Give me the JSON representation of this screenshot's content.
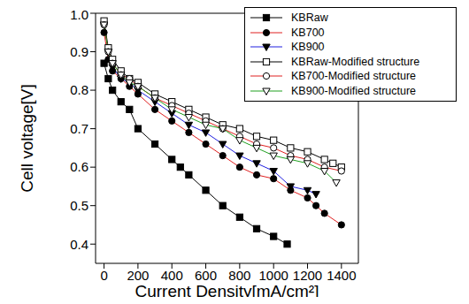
{
  "chart_data": {
    "type": "line",
    "x_label": "Current Density[mA/cm²]",
    "y_label": "Cell voltage[V]",
    "xlim": [
      -50,
      1500
    ],
    "xticks": [
      0,
      200,
      400,
      600,
      800,
      1000,
      1200,
      1400
    ],
    "ylim": [
      0.35,
      1.0
    ],
    "yticks": [
      0.4,
      0.5,
      0.6,
      0.7,
      0.8,
      0.9,
      {
        "value": 1.0,
        "label": "1.0"
      }
    ],
    "legend": "upper right",
    "grid": false,
    "series": [
      {
        "name": "KBRaw",
        "color": "#000000",
        "marker": "square",
        "x": [
          0,
          25,
          50,
          100,
          150,
          200,
          300,
          400,
          450,
          500,
          600,
          700,
          800,
          900,
          1000,
          1080
        ],
        "values": [
          0.87,
          0.83,
          0.8,
          0.77,
          0.75,
          0.7,
          0.66,
          0.62,
          0.6,
          0.58,
          0.54,
          0.5,
          0.47,
          0.44,
          0.42,
          0.4
        ]
      },
      {
        "name": "KB700",
        "color": "#e02020",
        "marker": "circle",
        "x": [
          0,
          25,
          50,
          100,
          150,
          200,
          300,
          400,
          500,
          600,
          700,
          800,
          900,
          1000,
          1100,
          1200,
          1250,
          1300,
          1400
        ],
        "values": [
          0.95,
          0.88,
          0.85,
          0.83,
          0.81,
          0.79,
          0.75,
          0.72,
          0.69,
          0.66,
          0.63,
          0.6,
          0.58,
          0.57,
          0.54,
          0.52,
          0.5,
          0.48,
          0.45
        ]
      },
      {
        "name": "KB900",
        "color": "#2020e0",
        "marker": "triangle-down",
        "x": [
          0,
          25,
          50,
          100,
          150,
          200,
          300,
          400,
          500,
          600,
          700,
          800,
          900,
          1000,
          1100,
          1200,
          1250
        ],
        "values": [
          0.97,
          0.9,
          0.86,
          0.83,
          0.82,
          0.8,
          0.77,
          0.74,
          0.71,
          0.69,
          0.66,
          0.63,
          0.61,
          0.59,
          0.55,
          0.54,
          0.53
        ]
      },
      {
        "name": "KBRaw-Modified structure",
        "color": "#000000",
        "marker": "square-open",
        "x": [
          0,
          25,
          50,
          100,
          150,
          200,
          300,
          400,
          500,
          600,
          700,
          800,
          900,
          1000,
          1100,
          1200,
          1300,
          1350,
          1400
        ],
        "values": [
          0.98,
          0.91,
          0.88,
          0.85,
          0.83,
          0.82,
          0.79,
          0.77,
          0.75,
          0.73,
          0.71,
          0.7,
          0.68,
          0.67,
          0.65,
          0.64,
          0.62,
          0.61,
          0.6
        ]
      },
      {
        "name": "KB700-Modified structure",
        "color": "#e02020",
        "marker": "circle-open",
        "x": [
          0,
          25,
          50,
          100,
          150,
          200,
          300,
          400,
          500,
          600,
          700,
          800,
          900,
          1000,
          1100,
          1200,
          1300,
          1400
        ],
        "values": [
          0.97,
          0.9,
          0.87,
          0.84,
          0.83,
          0.81,
          0.78,
          0.76,
          0.74,
          0.72,
          0.7,
          0.68,
          0.66,
          0.65,
          0.63,
          0.62,
          0.6,
          0.59
        ]
      },
      {
        "name": "KB900-Modified structure",
        "color": "#20a020",
        "marker": "triangle-down-open",
        "x": [
          0,
          25,
          50,
          100,
          150,
          200,
          300,
          400,
          500,
          600,
          700,
          800,
          900,
          1000,
          1100,
          1200,
          1300,
          1370
        ],
        "values": [
          0.97,
          0.9,
          0.87,
          0.84,
          0.82,
          0.81,
          0.78,
          0.75,
          0.73,
          0.71,
          0.7,
          0.67,
          0.65,
          0.63,
          0.62,
          0.61,
          0.59,
          0.56
        ]
      }
    ]
  }
}
